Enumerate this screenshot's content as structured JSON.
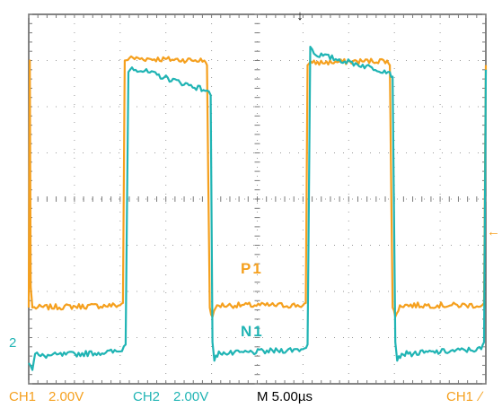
{
  "chart_data": {
    "type": "line",
    "title": "",
    "xlabel": "",
    "ylabel": "",
    "x_unit": "µs",
    "time_per_div_us": 5.0,
    "x_divisions": 10,
    "y_divisions": 8,
    "xlim_us": [
      0,
      50
    ],
    "ylim_div": [
      -4,
      4
    ],
    "grid": true,
    "series": [
      {
        "name": "P1",
        "channel": "CH1",
        "color": "#f5a01e",
        "volts_per_div": 2.0,
        "points": [
          [
            0.0,
            -2.35
          ],
          [
            0.12,
            3.0
          ],
          [
            0.22,
            -1.9
          ],
          [
            0.4,
            -2.35
          ],
          [
            10.0,
            -2.3
          ],
          [
            10.3,
            -2.25
          ],
          [
            10.5,
            3.0
          ],
          [
            11.0,
            3.05
          ],
          [
            19.2,
            3.0
          ],
          [
            19.5,
            2.9
          ],
          [
            19.8,
            -2.35
          ],
          [
            20.1,
            -2.55
          ],
          [
            20.6,
            -2.3
          ],
          [
            30.0,
            -2.3
          ],
          [
            30.3,
            -2.25
          ],
          [
            30.5,
            2.9
          ],
          [
            31.0,
            2.95
          ],
          [
            39.2,
            3.0
          ],
          [
            39.5,
            2.9
          ],
          [
            39.8,
            -2.35
          ],
          [
            40.1,
            -2.55
          ],
          [
            40.6,
            -2.3
          ],
          [
            49.6,
            -2.3
          ],
          [
            49.8,
            -2.25
          ],
          [
            50.0,
            2.9
          ]
        ]
      },
      {
        "name": "N1",
        "channel": "CH2",
        "color": "#20b4b4",
        "volts_per_div": 2.0,
        "points": [
          [
            0.0,
            -3.55
          ],
          [
            0.4,
            -3.7
          ],
          [
            0.7,
            -3.35
          ],
          [
            1.3,
            -3.4
          ],
          [
            10.0,
            -3.3
          ],
          [
            10.6,
            -3.15
          ],
          [
            10.9,
            2.75
          ],
          [
            11.3,
            2.85
          ],
          [
            19.5,
            2.35
          ],
          [
            19.9,
            2.25
          ],
          [
            20.1,
            -3.1
          ],
          [
            20.3,
            -3.5
          ],
          [
            20.8,
            -3.3
          ],
          [
            21.5,
            -3.35
          ],
          [
            30.0,
            -3.25
          ],
          [
            30.5,
            -3.15
          ],
          [
            30.8,
            3.3
          ],
          [
            31.2,
            3.15
          ],
          [
            39.5,
            2.75
          ],
          [
            39.8,
            2.65
          ],
          [
            40.1,
            -3.1
          ],
          [
            40.3,
            -3.5
          ],
          [
            40.8,
            -3.35
          ],
          [
            41.5,
            -3.35
          ],
          [
            49.5,
            -3.25
          ],
          [
            49.8,
            -3.1
          ],
          [
            50.0,
            2.8
          ]
        ]
      }
    ],
    "markers": {
      "ch2_ground_label": "2",
      "trigger_position_symbol": "↓",
      "trigger_level_symbol": "←"
    }
  },
  "trace_labels": {
    "p1": "P1",
    "n1": "N1"
  },
  "status_bar": {
    "ch1": "CH1",
    "ch1_scale": "2.00V",
    "ch2": "CH2",
    "ch2_scale": "2.00V",
    "timebase": "M 5.00µs",
    "trigger_source": "CH1",
    "trigger_slope": "∕"
  },
  "colors": {
    "ch1": "#f5a01e",
    "ch2": "#20b4b4",
    "grid": "#9a9a9a",
    "border": "#5a5a5a",
    "text_dark": "#000000"
  }
}
